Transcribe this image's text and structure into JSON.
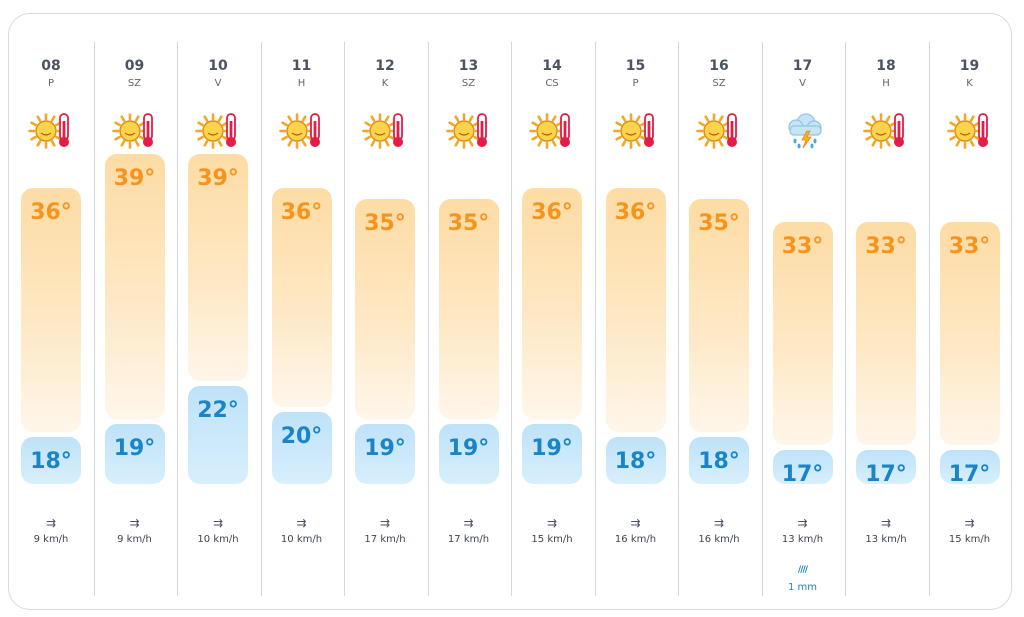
{
  "forecast": {
    "days": [
      {
        "num": "08",
        "name": "P",
        "icon": "sun-thermometer-icon",
        "max": "36°",
        "min": "18°",
        "wind": "9 km/h",
        "max_temp": 36,
        "min_temp": 18
      },
      {
        "num": "09",
        "name": "SZ",
        "icon": "sun-thermometer-icon",
        "max": "39°",
        "min": "19°",
        "wind": "9 km/h",
        "max_temp": 39,
        "min_temp": 19
      },
      {
        "num": "10",
        "name": "V",
        "icon": "sun-thermometer-icon",
        "max": "39°",
        "min": "22°",
        "wind": "10 km/h",
        "max_temp": 39,
        "min_temp": 22
      },
      {
        "num": "11",
        "name": "H",
        "icon": "sun-thermometer-icon",
        "max": "36°",
        "min": "20°",
        "wind": "10 km/h",
        "max_temp": 36,
        "min_temp": 20
      },
      {
        "num": "12",
        "name": "K",
        "icon": "sun-thermometer-icon",
        "max": "35°",
        "min": "19°",
        "wind": "17 km/h",
        "max_temp": 35,
        "min_temp": 19
      },
      {
        "num": "13",
        "name": "SZ",
        "icon": "sun-thermometer-icon",
        "max": "35°",
        "min": "19°",
        "wind": "17 km/h",
        "max_temp": 35,
        "min_temp": 19
      },
      {
        "num": "14",
        "name": "CS",
        "icon": "sun-thermometer-icon",
        "max": "36°",
        "min": "19°",
        "wind": "15 km/h",
        "max_temp": 36,
        "min_temp": 19
      },
      {
        "num": "15",
        "name": "P",
        "icon": "sun-thermometer-icon",
        "max": "36°",
        "min": "18°",
        "wind": "16 km/h",
        "max_temp": 36,
        "min_temp": 18
      },
      {
        "num": "16",
        "name": "SZ",
        "icon": "sun-thermometer-icon",
        "max": "35°",
        "min": "18°",
        "wind": "16 km/h",
        "max_temp": 35,
        "min_temp": 18
      },
      {
        "num": "17",
        "name": "V",
        "icon": "thunderstorm-rain-icon",
        "max": "33°",
        "min": "17°",
        "wind": "13 km/h",
        "rain": "1 mm",
        "max_temp": 33,
        "min_temp": 17
      },
      {
        "num": "18",
        "name": "H",
        "icon": "sun-thermometer-icon",
        "max": "33°",
        "min": "17°",
        "wind": "13 km/h",
        "max_temp": 33,
        "min_temp": 17
      },
      {
        "num": "19",
        "name": "K",
        "icon": "sun-thermometer-icon",
        "max": "33°",
        "min": "17°",
        "wind": "15 km/h",
        "max_temp": 33,
        "min_temp": 17
      }
    ],
    "wind_icon": "wind-arrow-icon",
    "rain_icon": "rain-drizzle-icon",
    "colors": {
      "max_text": "#f7941d",
      "min_text": "#1a84c9",
      "max_bar": "#fddca5",
      "min_bar": "#bee2f8"
    }
  }
}
